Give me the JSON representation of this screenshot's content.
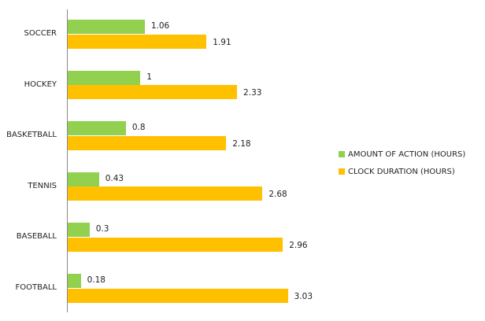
{
  "chart_data": {
    "type": "bar",
    "orientation": "horizontal",
    "title": "",
    "xlabel": "",
    "ylabel": "",
    "categories": [
      "SOCCER",
      "HOCKEY",
      "BASKETBALL",
      "TENNIS",
      "BASEBALL",
      "FOOTBALL"
    ],
    "series": [
      {
        "name": "AMOUNT OF ACTION (HOURS)",
        "color": "#92D050",
        "values": [
          1.06,
          1,
          0.8,
          0.43,
          0.3,
          0.18
        ],
        "labels": [
          "1.06",
          "1",
          "0.8",
          "0.43",
          "0.3",
          "0.18"
        ]
      },
      {
        "name": "CLOCK DURATION (HOURS)",
        "color": "#FFC000",
        "values": [
          1.91,
          2.33,
          2.18,
          2.68,
          2.96,
          3.03
        ],
        "labels": [
          "1.91",
          "2.33",
          "2.18",
          "2.68",
          "2.96",
          "3.03"
        ]
      }
    ],
    "grid": false,
    "legend_position": "right",
    "xlim": [
      0,
      3.5
    ]
  },
  "legend": {
    "items": [
      {
        "label": "AMOUNT OF ACTION (HOURS)",
        "color": "#92D050"
      },
      {
        "label": "CLOCK DURATION (HOURS)",
        "color": "#FFC000"
      }
    ]
  }
}
